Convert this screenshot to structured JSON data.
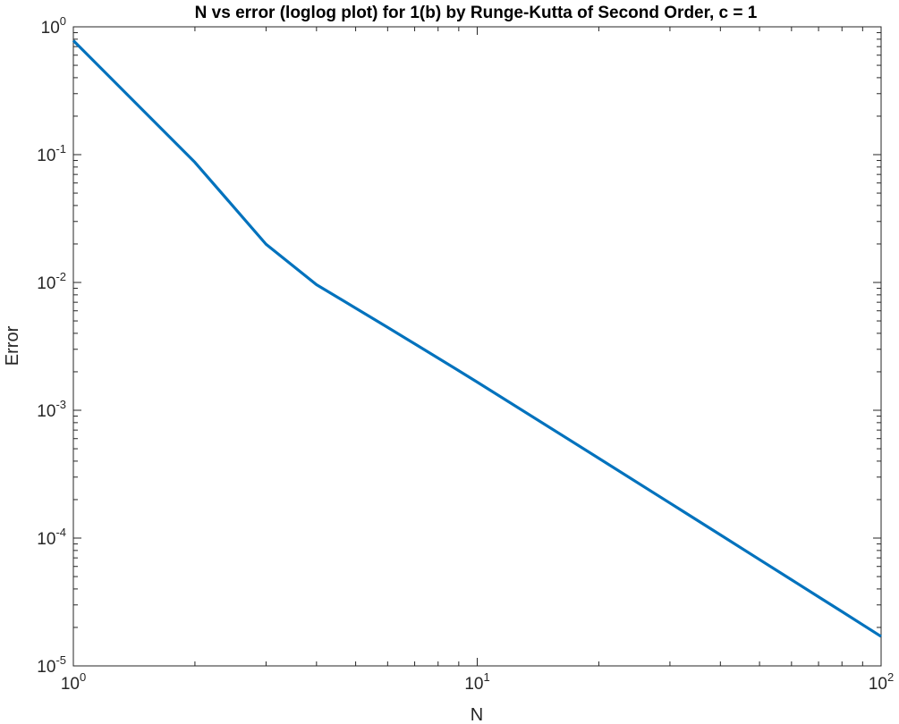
{
  "chart_data": {
    "type": "line",
    "title": "N vs error (loglog plot) for 1(b) by Runge-Kutta of Second Order, c = 1",
    "xlabel": "N",
    "ylabel": "Error",
    "xscale": "log",
    "yscale": "log",
    "xlim": [
      1,
      100
    ],
    "ylim": [
      1e-05,
      1
    ],
    "grid": false,
    "box": true,
    "x_ticks": [
      {
        "value": 1,
        "base": "10",
        "exp": "0"
      },
      {
        "value": 10,
        "base": "10",
        "exp": "1"
      },
      {
        "value": 100,
        "base": "10",
        "exp": "2"
      }
    ],
    "y_ticks": [
      {
        "value": 1,
        "base": "10",
        "exp": "0"
      },
      {
        "value": 0.1,
        "base": "10",
        "exp": "-1"
      },
      {
        "value": 0.01,
        "base": "10",
        "exp": "-2"
      },
      {
        "value": 0.001,
        "base": "10",
        "exp": "-3"
      },
      {
        "value": 0.0001,
        "base": "10",
        "exp": "-4"
      },
      {
        "value": 1e-05,
        "base": "10",
        "exp": "-5"
      }
    ],
    "series": [
      {
        "color": "#0072BD",
        "x": [
          1,
          2,
          3,
          4,
          5,
          6,
          7,
          8,
          9,
          10,
          20,
          30,
          40,
          50,
          60,
          70,
          80,
          90,
          100
        ],
        "y": [
          0.78,
          0.087,
          0.0199,
          0.0096,
          0.0063,
          0.00445,
          0.00331,
          0.00256,
          0.00204,
          0.00166,
          0.000421,
          0.000188,
          0.000106,
          6.79e-05,
          4.72e-05,
          3.47e-05,
          2.66e-05,
          2.1e-05,
          1.7e-05
        ]
      }
    ]
  }
}
